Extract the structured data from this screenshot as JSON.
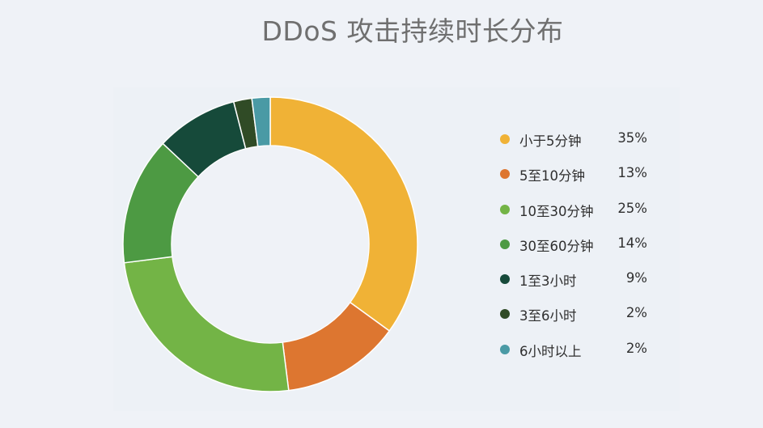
{
  "chart_data": {
    "type": "pie",
    "title": "DDoS 攻击持续时长分布",
    "categories": [
      "小于5分钟",
      "5至10分钟",
      "10至30分钟",
      "30至60分钟",
      "1至3小时",
      "3至6小时",
      "6小时以上"
    ],
    "values": [
      35,
      13,
      25,
      14,
      9,
      2,
      2
    ],
    "value_labels": [
      "35%",
      "13%",
      "25%",
      "14%",
      "9%",
      "2%",
      "2%"
    ],
    "colors": [
      "#f0b236",
      "#dd7630",
      "#73b446",
      "#4d9a43",
      "#164a3a",
      "#304b26",
      "#4a9aa5"
    ],
    "donut": true,
    "legend_position": "right"
  }
}
